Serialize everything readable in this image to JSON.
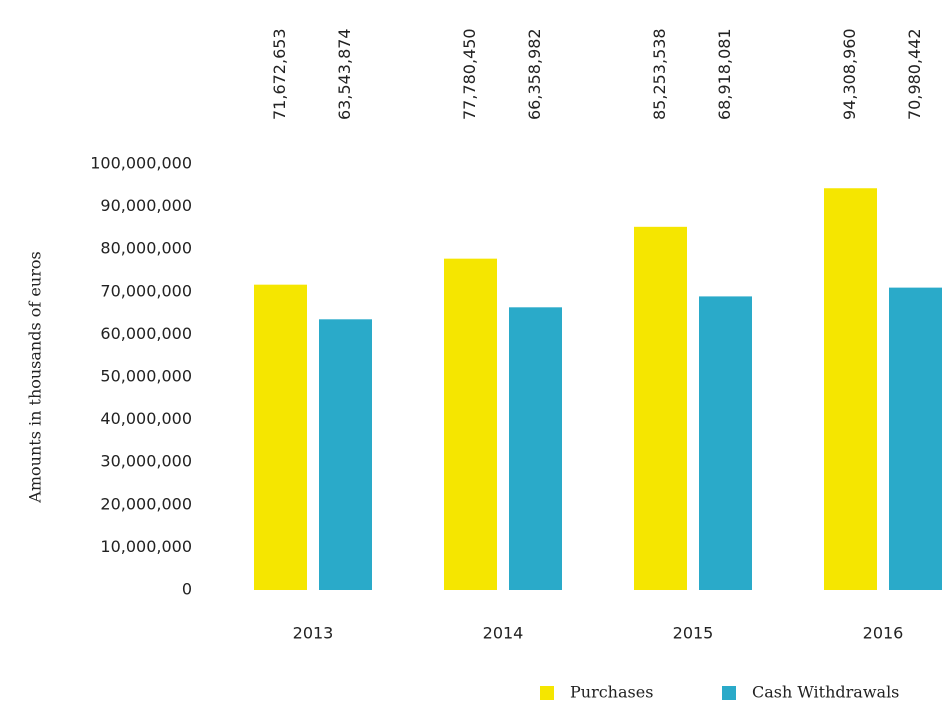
{
  "chart_data": {
    "type": "bar",
    "y_label": "Amounts in  thousands of euros",
    "categories": [
      "2013",
      "2014",
      "2015",
      "2016"
    ],
    "series": [
      {
        "name": "Purchases",
        "color": "#f5e600",
        "values": [
          71672653,
          77780450,
          85253538,
          94308960
        ],
        "value_labels": [
          "71,672,653",
          "77,780,450",
          "85,253,538",
          "94,308,960"
        ]
      },
      {
        "name": "Cash Withdrawals",
        "color": "#2aaac9",
        "values": [
          63543874,
          66358982,
          68918081,
          70980442
        ],
        "value_labels": [
          "63,543,874",
          "66,358,982",
          "68,918,081",
          "70,980,442"
        ]
      }
    ],
    "ylim": [
      0,
      100000000
    ],
    "yticks": [
      0,
      {
        "value": 10000000,
        "label": "10,000,000"
      },
      {
        "value": 20000000,
        "label": "20,000,000"
      },
      {
        "value": 30000000,
        "label": "30,000,000"
      },
      {
        "value": 40000000,
        "label": "40,000,000"
      },
      {
        "value": 50000000,
        "label": "50,000,000"
      },
      {
        "value": 60000000,
        "label": "60,000,000"
      },
      {
        "value": 70000000,
        "label": "70,000,000"
      },
      {
        "value": 80000000,
        "label": "80,000,000"
      },
      {
        "value": 90000000,
        "label": "90,000,000"
      },
      {
        "value": 100000000,
        "label": "100,000,000"
      }
    ],
    "grid": false,
    "legend": "bottom-right"
  }
}
